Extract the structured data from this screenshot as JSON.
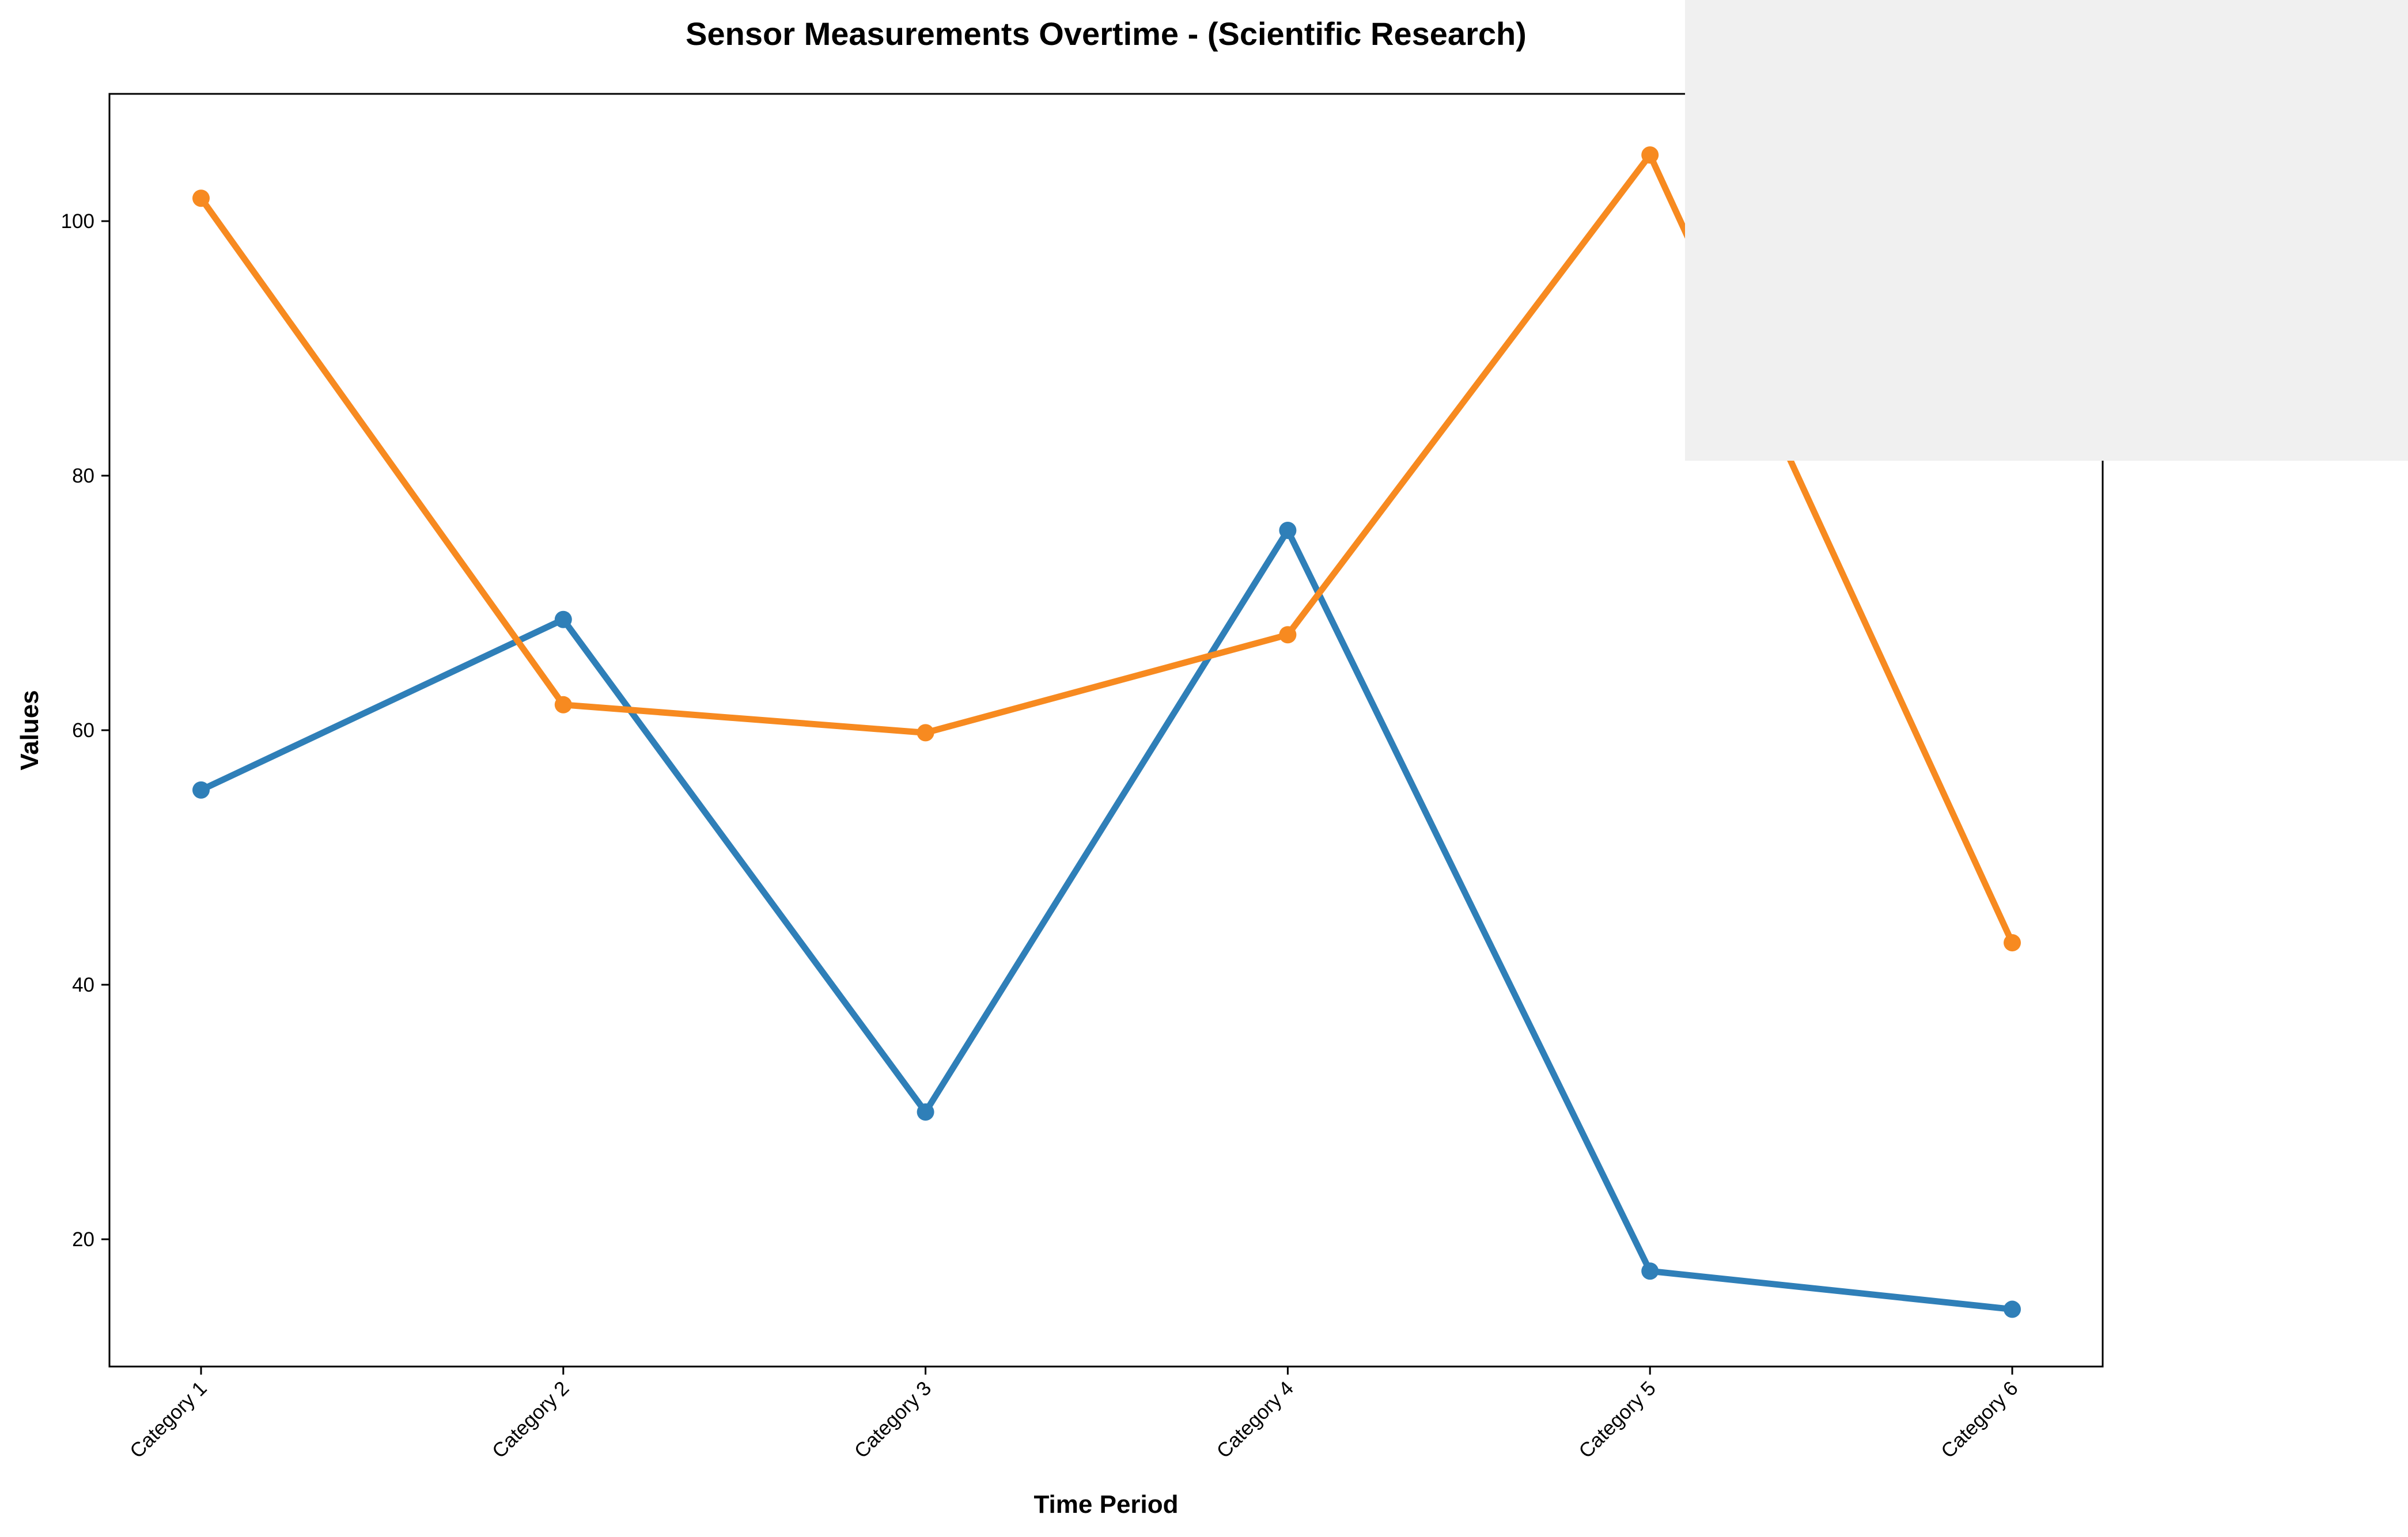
{
  "chart_data": {
    "type": "line",
    "title": "Sensor Measurements Overtime - (Scientific Research)",
    "xlabel": "Time Period",
    "ylabel": "Values",
    "categories": [
      "Category 1",
      "Category 2",
      "Category 3",
      "Category 4",
      "Category 5",
      "Category 6"
    ],
    "ylim": [
      10,
      110
    ],
    "yticks": [
      20,
      40,
      60,
      80,
      100
    ],
    "grid": false,
    "series": [
      {
        "color": "#2f7fb8",
        "values": [
          55.3,
          68.7,
          30.0,
          75.7,
          17.5,
          14.5
        ]
      },
      {
        "color": "#f78a20",
        "values": [
          101.8,
          62.0,
          59.8,
          67.5,
          105.2,
          43.3
        ]
      }
    ]
  }
}
